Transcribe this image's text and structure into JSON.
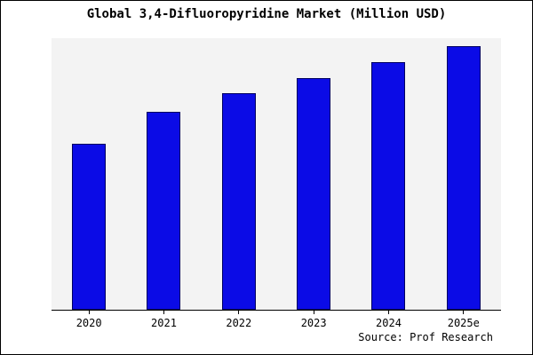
{
  "title": "Global 3,4-Difluoropyridine Market (Million USD)",
  "source": "Source: Prof Research",
  "chart_data": {
    "type": "bar",
    "categories": [
      "2020",
      "2021",
      "2022",
      "2023",
      "2024",
      "2025e"
    ],
    "values": [
      63,
      75,
      82,
      88,
      94,
      100
    ],
    "title": "Global 3,4-Difluoropyridine Market (Million USD)",
    "xlabel": "",
    "ylabel": "",
    "ylim": [
      0,
      103
    ],
    "grid": false,
    "legend": false,
    "yaxis_labels_visible": false,
    "colors": {
      "bar_fill": "#0b0be6",
      "bar_border": "#000060",
      "plot_bg": "#f3f3f3"
    }
  }
}
